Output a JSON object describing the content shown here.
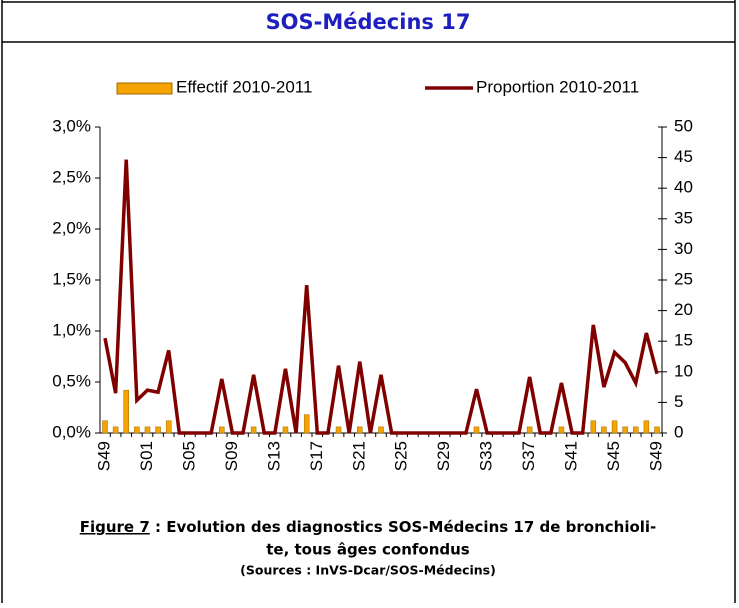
{
  "header": {
    "title": "SOS-Médecins 17"
  },
  "chart_data": {
    "type": "combo",
    "categories": [
      "S49",
      null,
      null,
      null,
      "S01",
      null,
      null,
      null,
      "S05",
      null,
      null,
      null,
      "S09",
      null,
      null,
      null,
      "S13",
      null,
      null,
      null,
      "S17",
      null,
      null,
      null,
      "S21",
      null,
      null,
      null,
      "S25",
      null,
      null,
      null,
      "S29",
      null,
      null,
      null,
      "S33",
      null,
      null,
      null,
      "S37",
      null,
      null,
      null,
      "S41",
      null,
      null,
      null,
      "S45",
      null,
      null,
      null,
      "S49"
    ],
    "series": [
      {
        "name": "Effectif 2010-2011",
        "type": "bar",
        "axis": "y2",
        "color": "#f5a300",
        "values": [
          2,
          1,
          7,
          1,
          1,
          1,
          2,
          0,
          0,
          0,
          0,
          1,
          0,
          0,
          1,
          0,
          0,
          1,
          0,
          3,
          0,
          0,
          1,
          0,
          1,
          0,
          1,
          0,
          0,
          0,
          0,
          0,
          0,
          0,
          0,
          1,
          0,
          0,
          0,
          0,
          1,
          0,
          0,
          1,
          0,
          0,
          2,
          1,
          2,
          1,
          1,
          2,
          1
        ]
      },
      {
        "name": "Proportion 2010-2011",
        "type": "line",
        "axis": "y",
        "color": "#800000",
        "values": [
          0.93,
          0.39,
          2.68,
          0.32,
          0.42,
          0.4,
          0.81,
          0,
          0,
          0,
          0,
          0.53,
          0,
          0,
          0.57,
          0,
          0,
          0.63,
          0,
          1.45,
          0,
          0,
          0.66,
          0,
          0.7,
          0,
          0.57,
          0,
          0,
          0,
          0,
          0,
          0,
          0,
          0,
          0.43,
          0,
          0,
          0,
          0,
          0.55,
          0,
          0,
          0.49,
          0,
          0,
          1.06,
          0.45,
          0.79,
          0.69,
          0.49,
          0.98,
          0.58
        ]
      }
    ],
    "ylim": [
      0,
      3
    ],
    "yticks": [
      {
        "value": 0,
        "label": "0,0%"
      },
      {
        "value": 0.5,
        "label": "0,5%"
      },
      {
        "value": 1,
        "label": "1,0%"
      },
      {
        "value": 1.5,
        "label": "1,5%"
      },
      {
        "value": 2,
        "label": "2,0%"
      },
      {
        "value": 2.5,
        "label": "2,5%"
      },
      {
        "value": 3,
        "label": "3,0%"
      }
    ],
    "y2lim": [
      0,
      50
    ],
    "y2ticks": [
      0,
      5,
      10,
      15,
      20,
      25,
      30,
      35,
      40,
      45,
      50
    ],
    "legend": "top"
  },
  "caption": {
    "label": "Figure 7",
    "text": [
      " : Evolution des diagnostics SOS-Médecins 17 de bronchioli-",
      "te, tous âges confondus"
    ],
    "source": "(Sources : InVS-Dcar/SOS-Médecins)"
  }
}
